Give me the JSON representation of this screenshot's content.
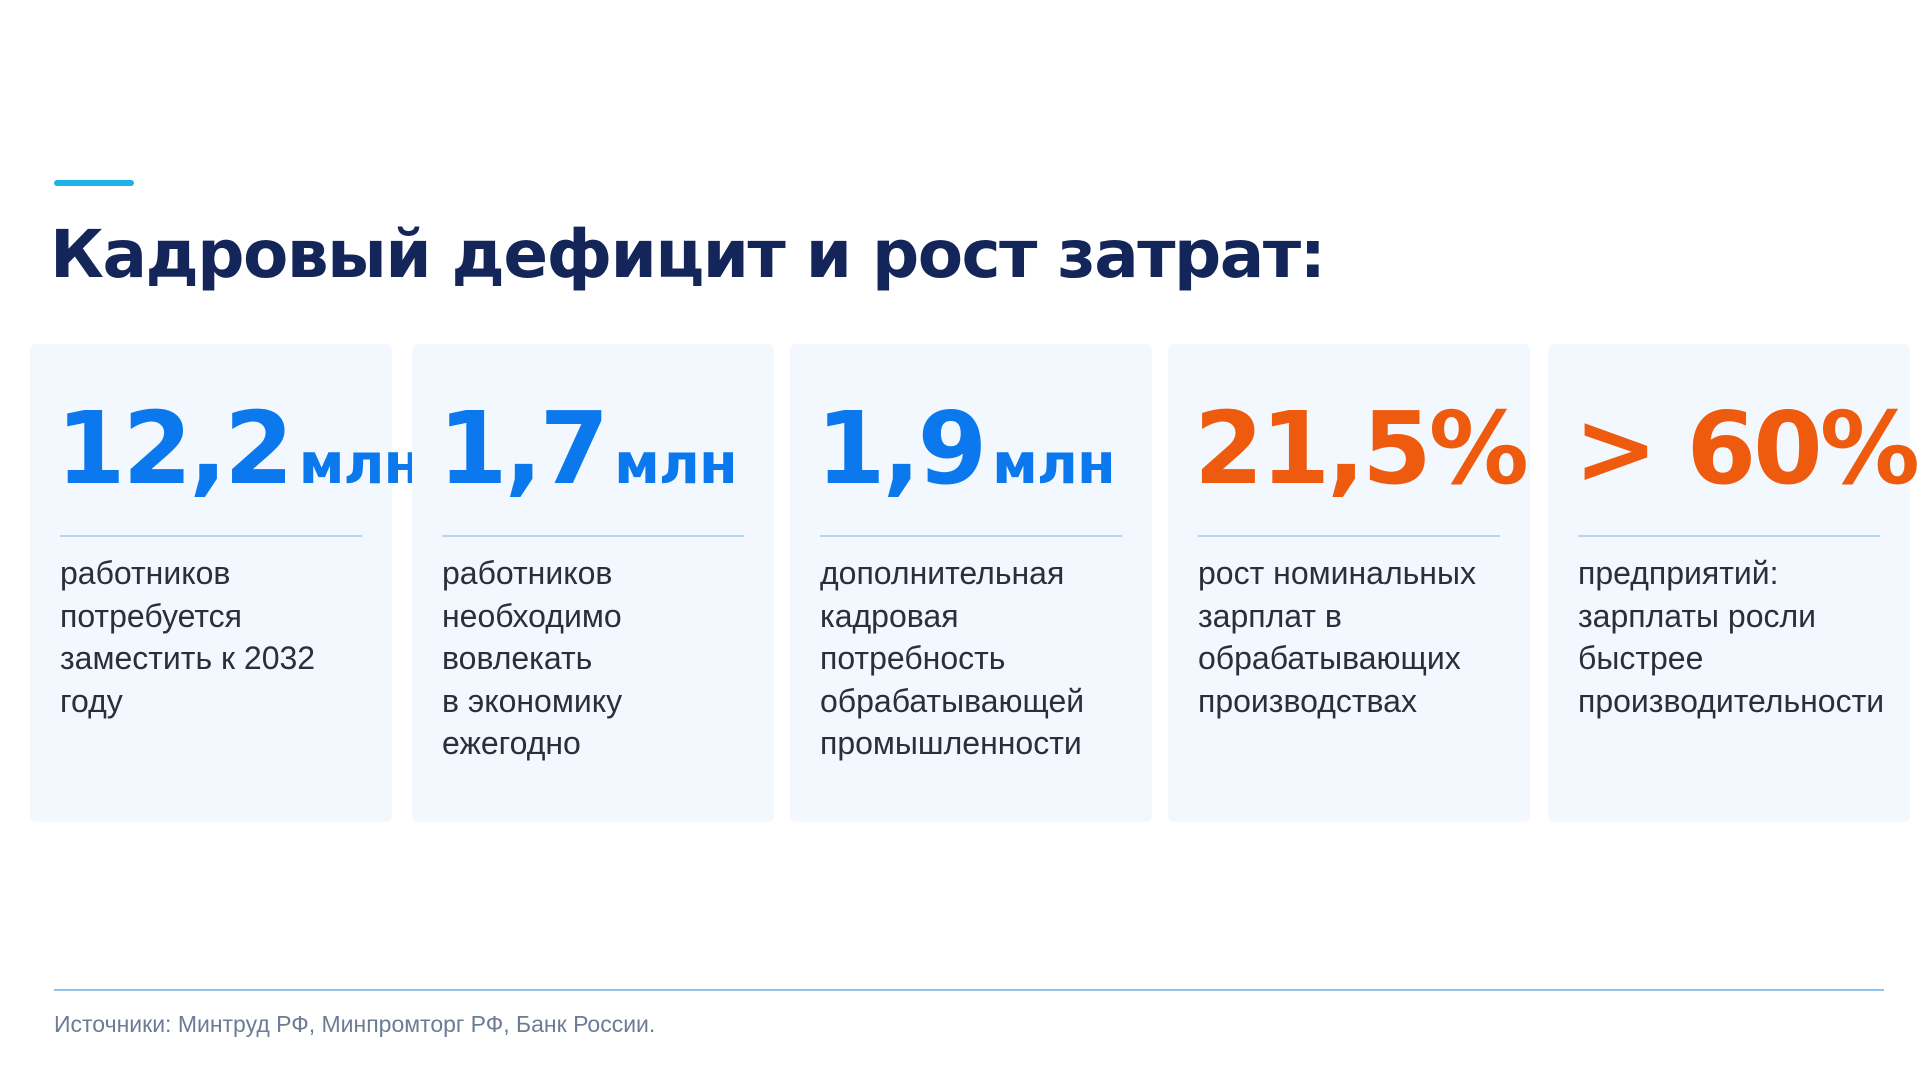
{
  "slide": {
    "title": "Кадровый дефицит и рост затрат:",
    "accent_color": "#1cb2ea",
    "title_color": "#14255a"
  },
  "cards": [
    {
      "value": "12,2",
      "unit": "млн",
      "value_color": "#0b78ee",
      "description": "работников\nпотребуется\nзаместить к 2032\nгоду"
    },
    {
      "value": "1,7",
      "unit": "млн",
      "value_color": "#0b78ee",
      "description": "работников\nнеобходимо\nвовлекать\nв экономику\nежегодно"
    },
    {
      "value": "1,9",
      "unit": "млн",
      "value_color": "#0b78ee",
      "description": "дополнительная\nкадровая\nпотребность\nобрабатывающей\nпромышленности"
    },
    {
      "value": "21,5%",
      "unit": "",
      "value_color": "#ee5a0e",
      "description": "рост номинальных\nзарплат в\nобрабатывающих\nпроизводствах"
    },
    {
      "value": "> 60%",
      "unit": "",
      "value_color": "#ee5a0e",
      "description": "предприятий:\nзарплаты росли\nбыстрее\nпроизводительности"
    }
  ],
  "footer": {
    "sources": "Источники: Минтруд РФ, Минпромторг РФ, Банк России."
  }
}
